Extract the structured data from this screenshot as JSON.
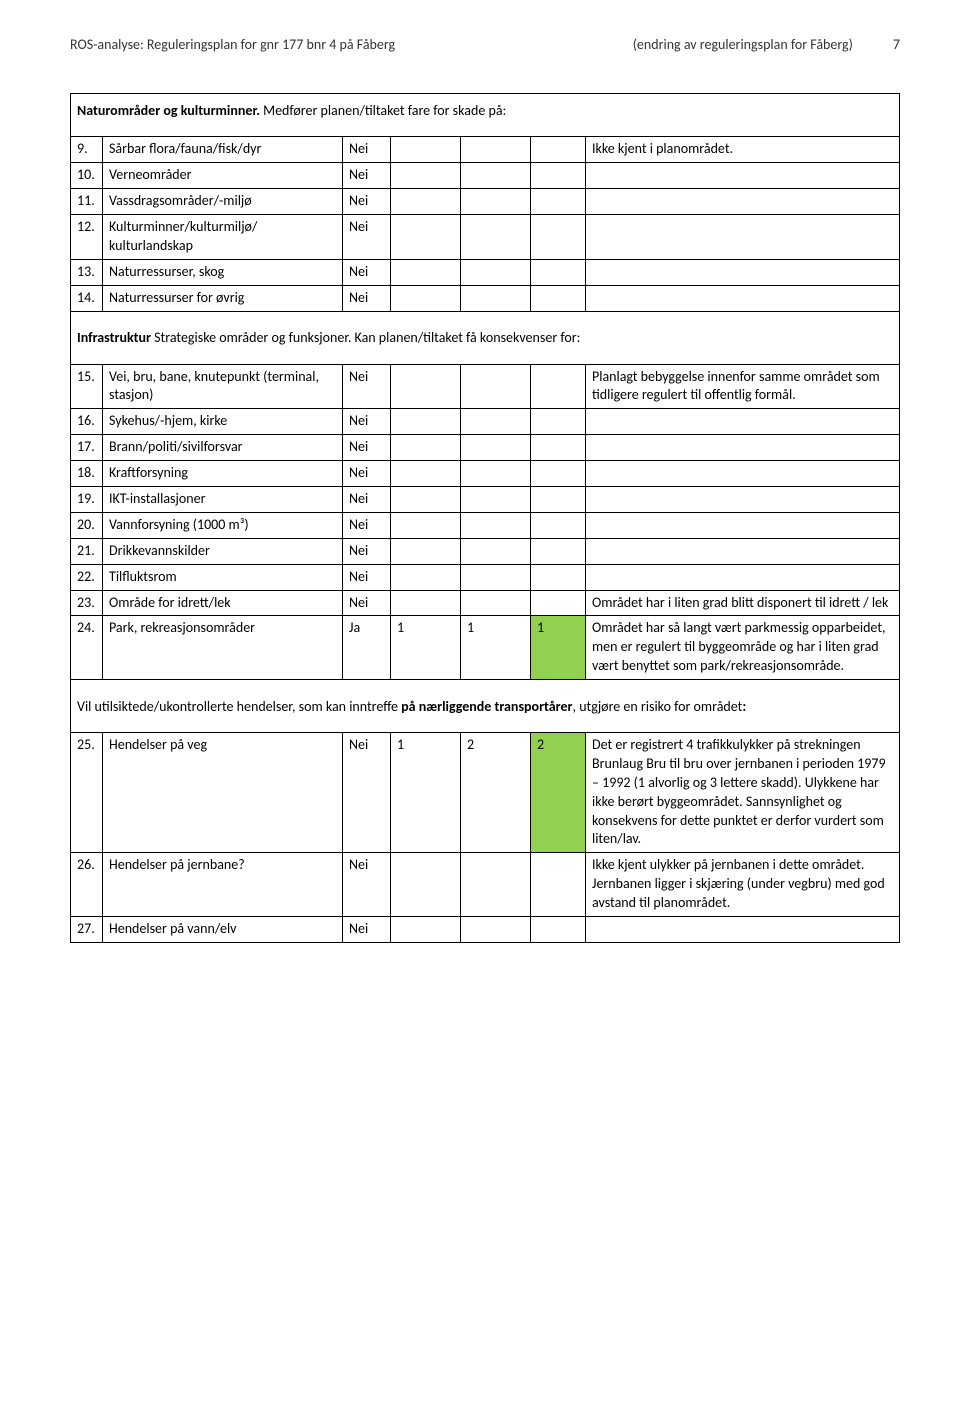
{
  "header": {
    "left": "ROS-analyse: Reguleringsplan for gnr 177 bnr 4 på Fåberg",
    "right": "(endring av reguleringsplan for Fåberg)",
    "page": "7"
  },
  "sections": {
    "s1": {
      "prefix": "Naturområder og kulturminner.",
      "text": " Medfører planen/tiltaket fare for skade på:"
    },
    "s2": {
      "prefix": "Infrastruktur",
      "mid": " Strategiske områder og funksjoner.",
      "suffix": " Kan planen/tiltaket få konsekvenser for:"
    },
    "s3": {
      "text1": "Vil utilsiktede/ukontrollerte hendelser, som kan inntreffe ",
      "bold1": "på nærliggende transportårer",
      "text2": ", utgjøre en risiko for området",
      "bold2": ":"
    }
  },
  "rows": {
    "r9": {
      "n": "9.",
      "desc": "Sårbar flora/fauna/fisk/dyr",
      "val": "Nei",
      "comment": "Ikke kjent i planområdet."
    },
    "r10": {
      "n": "10.",
      "desc": "Verneområder",
      "val": "Nei"
    },
    "r11": {
      "n": "11.",
      "desc": "Vassdragsområder/-miljø",
      "val": "Nei"
    },
    "r12": {
      "n": "12.",
      "desc": "Kulturminner/kulturmiljø/ kulturlandskap",
      "val": "Nei"
    },
    "r13": {
      "n": "13.",
      "desc": "Naturressurser, skog",
      "val": "Nei"
    },
    "r14": {
      "n": "14.",
      "desc": "Naturressurser for øvrig",
      "val": "Nei"
    },
    "r15": {
      "n": "15.",
      "desc": "Vei, bru, bane, knutepunkt (terminal, stasjon)",
      "val": "Nei",
      "comment": "Planlagt bebyggelse innenfor samme området som tidligere regulert til offentlig formål."
    },
    "r16": {
      "n": "16.",
      "desc": "Sykehus/-hjem, kirke",
      "val": "Nei"
    },
    "r17": {
      "n": "17.",
      "desc": "Brann/politi/sivilforsvar",
      "val": "Nei"
    },
    "r18": {
      "n": "18.",
      "desc": "Kraftforsyning",
      "val": "Nei"
    },
    "r19": {
      "n": "19.",
      "desc": "IKT-installasjoner",
      "val": "Nei"
    },
    "r20": {
      "n": "20.",
      "desc": "Vannforsyning (1000 m³)",
      "val": "Nei"
    },
    "r21": {
      "n": "21.",
      "desc": "Drikkevannskilder",
      "val": "Nei"
    },
    "r22": {
      "n": "22.",
      "desc": "Tilfluktsrom",
      "val": "Nei"
    },
    "r23": {
      "n": "23.",
      "desc": "Område for idrett/lek",
      "val": "Nei",
      "comment": "Området har i liten grad blitt disponert til idrett / lek"
    },
    "r24": {
      "n": "24.",
      "desc": "Park, rekreasjonsområder",
      "val": "Ja",
      "c1": "1",
      "c2": "1",
      "c3": "1",
      "comment": "Området har så langt vært parkmessig opparbeidet, men er regulert til byggeområde og har i liten grad vært benyttet som park/rekreasjonsområde."
    },
    "r25": {
      "n": "25.",
      "desc": "Hendelser på veg",
      "val": "Nei",
      "c1": "1",
      "c2": "2",
      "c3": "2",
      "comment": "Det er registrert 4 trafikkulykker på strekningen Brunlaug Bru til bru over jernbanen i perioden 1979 – 1992 (1 alvorlig og 3 lettere skadd). Ulykkene har ikke berørt byggeområdet. Sannsynlighet og konsekvens for dette punktet er derfor vurdert som liten/lav."
    },
    "r26": {
      "n": "26.",
      "desc": "Hendelser på jernbane?",
      "val": "Nei",
      "comment": "Ikke kjent ulykker på jernbanen i dette området. Jernbanen ligger i skjæring (under vegbru) med god avstand til planområdet."
    },
    "r27": {
      "n": "27.",
      "desc": "Hendelser på vann/elv",
      "val": "Nei"
    }
  },
  "colors": {
    "highlight": "#92d050"
  }
}
